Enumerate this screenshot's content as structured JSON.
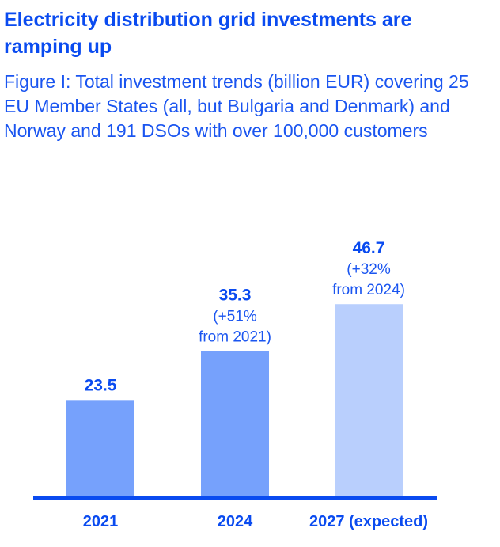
{
  "header": {
    "title": "Electricity distribution grid investments are ramping up",
    "subtitle": "Figure I: Total investment trends (billion EUR) covering 25 EU Member States (all, but Bulgaria and Denmark) and Norway and 191 DSOs with over 100,000 customers"
  },
  "chart_data": {
    "type": "bar",
    "title": "Electricity distribution grid investments are ramping up",
    "subtitle": "Figure I: Total investment trends (billion EUR) covering 25 EU Member States (all, but Bulgaria and Denmark) and Norway and 191 DSOs with over 100,000 customers",
    "categories": [
      "2021",
      "2024",
      "2027 (expected)"
    ],
    "values": [
      23.5,
      35.3,
      46.7
    ],
    "value_labels": [
      "23.5",
      "35.3",
      "46.7"
    ],
    "annotations": [
      [],
      [
        "(+51%",
        "from 2021)"
      ],
      [
        "(+32%",
        "from 2024)"
      ]
    ],
    "colors": [
      "#76a1fc",
      "#76a1fc",
      "#b9cffd"
    ],
    "axis_color": "#0a4bf0",
    "xlabel": "",
    "ylabel": "billion EUR",
    "ylim": [
      0,
      50
    ],
    "grid": false
  }
}
